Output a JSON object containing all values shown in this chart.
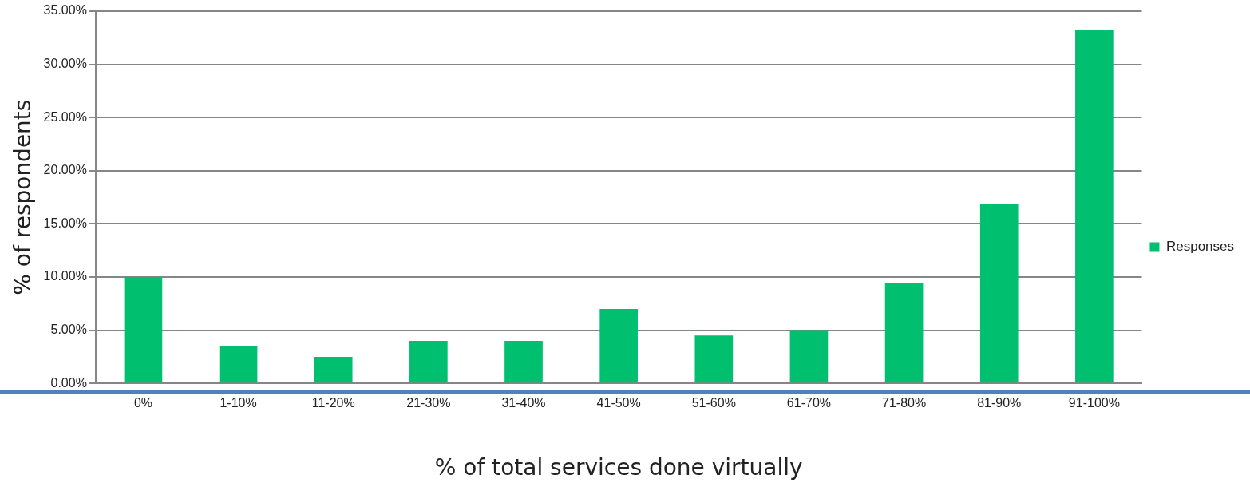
{
  "chart_data": {
    "type": "bar",
    "xlabel": "% of total services done virtually",
    "ylabel": "% of respondents",
    "categories": [
      "0%",
      "1-10%",
      "11-20%",
      "21-30%",
      "31-40%",
      "41-50%",
      "51-60%",
      "61-70%",
      "71-80%",
      "81-90%",
      "91-100%"
    ],
    "series": [
      {
        "name": "Responses",
        "color": "#00bf6f",
        "values": [
          10,
          3.5,
          2.5,
          4,
          4,
          7,
          4.5,
          5,
          9.4,
          16.9,
          33.2
        ]
      }
    ],
    "ylim": [
      0,
      35
    ],
    "yticks": [
      {
        "value": 0,
        "label": "0.00%"
      },
      {
        "value": 5,
        "label": "5.00%"
      },
      {
        "value": 10,
        "label": "10.00%"
      },
      {
        "value": 15,
        "label": "15.00%"
      },
      {
        "value": 20,
        "label": "20.00%"
      },
      {
        "value": 25,
        "label": "25.00%"
      },
      {
        "value": 30,
        "label": "30.00%"
      },
      {
        "value": 35,
        "label": "35.00%"
      }
    ],
    "grid": "y",
    "legend": "right"
  }
}
